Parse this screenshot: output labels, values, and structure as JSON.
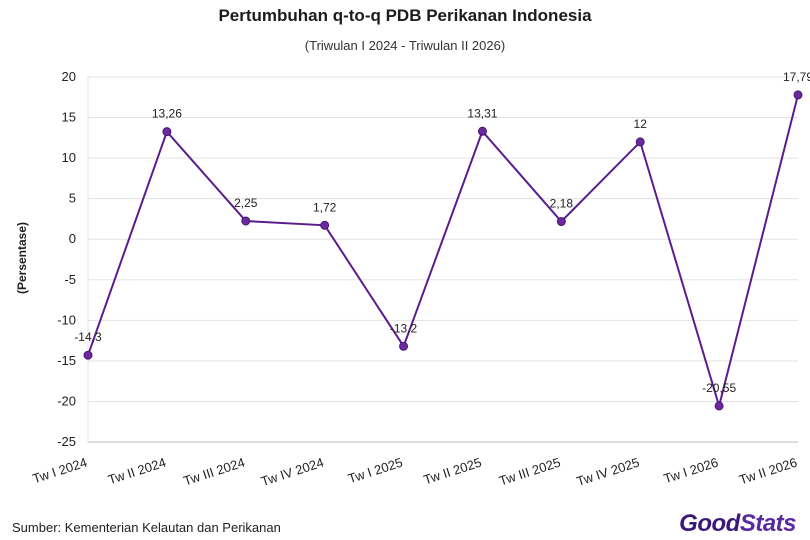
{
  "header": {
    "title": "Pertumbuhan q-to-q PDB Perikanan Indonesia",
    "subtitle": "(Triwulan I 2024 - Triwulan II 2026)"
  },
  "footer": {
    "source": "Sumber: Kementerian Kelautan dan Perikanan",
    "logo": "GoodStats"
  },
  "chart_data": {
    "type": "line",
    "title": "Pertumbuhan q-to-q PDB Perikanan Indonesia",
    "subtitle": "(Triwulan I 2024 - Triwulan II 2026)",
    "xlabel": "",
    "ylabel": "(Persentase)",
    "ylim": [
      -25,
      20
    ],
    "yticks": [
      20,
      15,
      10,
      5,
      0,
      -5,
      -10,
      -15,
      -20,
      -25
    ],
    "categories": [
      "Tw I 2024",
      "Tw II 2024",
      "Tw III 2024",
      "Tw IV 2024",
      "Tw I 2025",
      "Tw II 2025",
      "Tw III 2025",
      "Tw IV 2025",
      "Tw I 2026",
      "Tw II 2026"
    ],
    "values": [
      -14.3,
      13.26,
      2.25,
      1.72,
      -13.2,
      13.31,
      2.18,
      12,
      -20.55,
      17.79
    ],
    "data_labels": [
      "-14,3",
      "13,26",
      "2,25",
      "1,72",
      "-13,2",
      "13,31",
      "2,18",
      "12",
      "-20,55",
      "17,79"
    ],
    "line_color": "#5b1c8c",
    "marker_color": "#6a2a9e",
    "grid": true,
    "legend": "none"
  }
}
